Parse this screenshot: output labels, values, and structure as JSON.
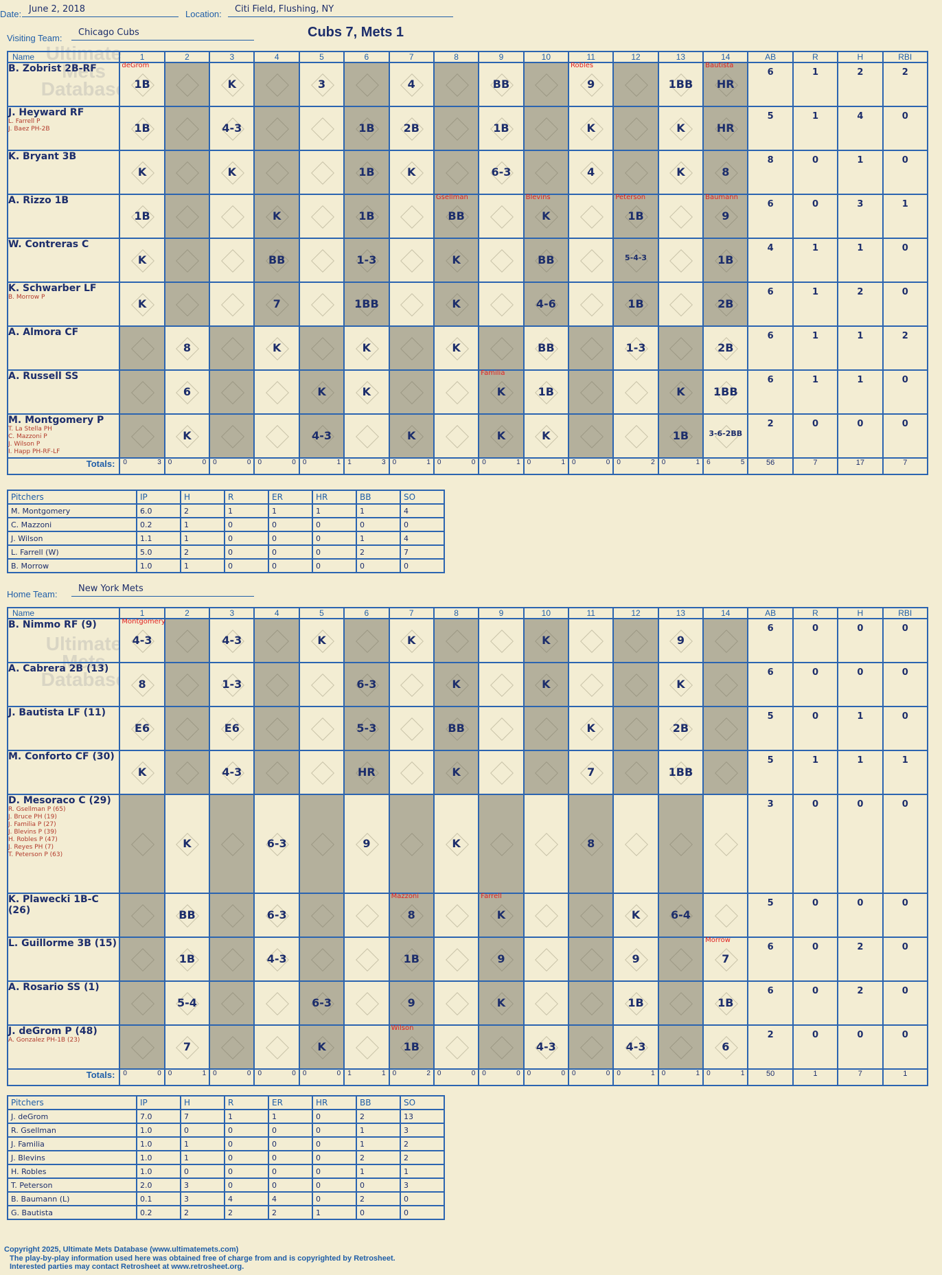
{
  "header": {
    "date_label": "Date:",
    "date": "June 2, 2018",
    "location_label": "Location:",
    "location": "Citi Field, Flushing, NY",
    "title": "Cubs 7, Mets 1"
  },
  "visiting": {
    "team_label": "Visiting Team:",
    "team": "Chicago Cubs",
    "cols": [
      "Name",
      "1",
      "2",
      "3",
      "4",
      "5",
      "6",
      "7",
      "8",
      "9",
      "10",
      "11",
      "12",
      "13",
      "14",
      "AB",
      "R",
      "H",
      "RBI"
    ],
    "players": [
      {
        "name": "B. Zobrist 2B-RF",
        "subs": [],
        "ab": "6",
        "r": "1",
        "h": "2",
        "rbi": "2"
      },
      {
        "name": "J. Heyward RF",
        "subs": [
          "L. Farrell P",
          "J. Baez PH-2B"
        ],
        "ab": "5",
        "r": "1",
        "h": "4",
        "rbi": "0"
      },
      {
        "name": "K. Bryant 3B",
        "subs": [],
        "ab": "8",
        "r": "0",
        "h": "1",
        "rbi": "0"
      },
      {
        "name": "A. Rizzo 1B",
        "subs": [],
        "ab": "6",
        "r": "0",
        "h": "3",
        "rbi": "1"
      },
      {
        "name": "W. Contreras C",
        "subs": [],
        "ab": "4",
        "r": "1",
        "h": "1",
        "rbi": "0"
      },
      {
        "name": "K. Schwarber LF",
        "subs": [
          "B. Morrow P"
        ],
        "ab": "6",
        "r": "1",
        "h": "2",
        "rbi": "0"
      },
      {
        "name": "A. Almora CF",
        "subs": [],
        "ab": "6",
        "r": "1",
        "h": "1",
        "rbi": "2"
      },
      {
        "name": "A. Russell SS",
        "subs": [],
        "ab": "6",
        "r": "1",
        "h": "1",
        "rbi": "0"
      },
      {
        "name": "M. Montgomery P",
        "subs": [
          "T. La Stella PH",
          "C. Mazzoni P",
          "J. Wilson P",
          "I. Happ PH-RF-LF"
        ],
        "ab": "2",
        "r": "0",
        "h": "0",
        "rbi": "0"
      }
    ],
    "results": [
      [
        "1B",
        "",
        "K",
        "",
        "3",
        "",
        "4",
        "",
        "BB",
        "",
        "9",
        "",
        "1BB",
        "HR"
      ],
      [
        "1B",
        "",
        "4-3",
        "",
        "",
        "1B",
        "2B",
        "",
        "1B",
        "",
        "K",
        "",
        "K",
        "HR"
      ],
      [
        "K",
        "",
        "K",
        "",
        "",
        "1B",
        "K",
        "",
        "6-3",
        "",
        "4",
        "",
        "K",
        "8"
      ],
      [
        "1B",
        "",
        "",
        "K",
        "",
        "1B",
        "",
        "BB",
        "",
        "K",
        "",
        "1B",
        "",
        "9"
      ],
      [
        "K",
        "",
        "",
        "BB",
        "",
        "1-3",
        "",
        "K",
        "",
        "BB",
        "",
        "5-4-3",
        "",
        "1B"
      ],
      [
        "K",
        "",
        "",
        "7",
        "",
        "1BB",
        "",
        "K",
        "",
        "4-6",
        "",
        "1B",
        "",
        "2B"
      ],
      [
        "",
        "8",
        "",
        "K",
        "",
        "K",
        "",
        "K",
        "",
        "BB",
        "",
        "1-3",
        "",
        "2B"
      ],
      [
        "",
        "6",
        "",
        "",
        "K",
        "K",
        "",
        "",
        "K",
        "1B",
        "",
        "",
        "K",
        "1BB"
      ],
      [
        "",
        "K",
        "",
        "",
        "4-3",
        "",
        "K",
        "",
        "K",
        "K",
        "",
        "",
        "1B",
        "3-6-2BB"
      ]
    ],
    "pitcher_marks": {
      "0-0": "deGrom",
      "0-10": "Robles",
      "0-13": "Bautista",
      "3-7": "Gsellman",
      "3-9": "Blevins",
      "3-11": "Peterson",
      "3-13": "Baumann",
      "7-8": "Familia"
    },
    "totals_label": "Totals:",
    "totals": [
      "0 3",
      "0 0",
      "0 0",
      "0 0",
      "0 1",
      "1 3",
      "0 1",
      "0 0",
      "0 1",
      "0 1",
      "0 0",
      "0 2",
      "0 1",
      "6 5"
    ],
    "totals_stats": [
      "56",
      "7",
      "17",
      "7"
    ],
    "rh": [
      "R",
      "H"
    ],
    "pitch_cols": [
      "Pitchers",
      "IP",
      "H",
      "R",
      "ER",
      "HR",
      "BB",
      "SO"
    ],
    "pitchers": [
      [
        "M. Montgomery",
        "6.0",
        "2",
        "1",
        "1",
        "1",
        "1",
        "4"
      ],
      [
        "C. Mazzoni",
        "0.2",
        "1",
        "0",
        "0",
        "0",
        "0",
        "0"
      ],
      [
        "J. Wilson",
        "1.1",
        "1",
        "0",
        "0",
        "0",
        "1",
        "4"
      ],
      [
        "L. Farrell (W)",
        "5.0",
        "2",
        "0",
        "0",
        "0",
        "2",
        "7"
      ],
      [
        "B. Morrow",
        "1.0",
        "1",
        "0",
        "0",
        "0",
        "0",
        "0"
      ]
    ]
  },
  "home": {
    "team_label": "Home Team:",
    "team": "New York Mets",
    "players": [
      {
        "name": "B. Nimmo RF (9)",
        "subs": [],
        "ab": "6",
        "r": "0",
        "h": "0",
        "rbi": "0"
      },
      {
        "name": "A. Cabrera 2B (13)",
        "subs": [],
        "ab": "6",
        "r": "0",
        "h": "0",
        "rbi": "0"
      },
      {
        "name": "J. Bautista LF (11)",
        "subs": [],
        "ab": "5",
        "r": "0",
        "h": "1",
        "rbi": "0"
      },
      {
        "name": "M. Conforto CF (30)",
        "subs": [],
        "ab": "5",
        "r": "1",
        "h": "1",
        "rbi": "1"
      },
      {
        "name": "D. Mesoraco C (29)",
        "subs": [
          "R. Gsellman P (65)",
          "J. Bruce PH (19)",
          "J. Familia P (27)",
          "J. Blevins P (39)",
          "H. Robles P (47)",
          "J. Reyes PH (7)",
          "T. Peterson P (63)"
        ],
        "ab": "3",
        "r": "0",
        "h": "0",
        "rbi": "0"
      },
      {
        "name": "K. Plawecki 1B-C (26)",
        "subs": [],
        "ab": "5",
        "r": "0",
        "h": "0",
        "rbi": "0"
      },
      {
        "name": "L. Guillorme 3B (15)",
        "subs": [],
        "ab": "6",
        "r": "0",
        "h": "2",
        "rbi": "0"
      },
      {
        "name": "A. Rosario SS (1)",
        "subs": [],
        "ab": "6",
        "r": "0",
        "h": "2",
        "rbi": "0"
      },
      {
        "name": "J. deGrom P (48)",
        "subs": [
          "A. Gonzalez PH-1B (23)"
        ],
        "ab": "2",
        "r": "0",
        "h": "0",
        "rbi": "0"
      }
    ],
    "results": [
      [
        "4-3",
        "",
        "4-3",
        "",
        "K",
        "",
        "K",
        "",
        "",
        "K",
        "",
        "",
        "9",
        ""
      ],
      [
        "8",
        "",
        "1-3",
        "",
        "",
        "6-3",
        "",
        "K",
        "",
        "K",
        "",
        "",
        "K",
        ""
      ],
      [
        "E6",
        "",
        "E6",
        "",
        "",
        "5-3",
        "",
        "BB",
        "",
        "",
        "K",
        "",
        "2B",
        ""
      ],
      [
        "K",
        "",
        "4-3",
        "",
        "",
        "HR",
        "",
        "K",
        "",
        "",
        "7",
        "",
        "1BB",
        ""
      ],
      [
        "",
        "K",
        "",
        "6-3",
        "",
        "9",
        "",
        "K",
        "",
        "",
        "8",
        "",
        "",
        ""
      ],
      [
        "",
        "BB",
        "",
        "6-3",
        "",
        "",
        "8",
        "",
        "K",
        "",
        "",
        "K",
        "6-4",
        ""
      ],
      [
        "",
        "1B",
        "",
        "4-3",
        "",
        "",
        "1B",
        "",
        "9",
        "",
        "",
        "9",
        "",
        "7"
      ],
      [
        "",
        "5-4",
        "",
        "",
        "6-3",
        "",
        "9",
        "",
        "K",
        "",
        "",
        "1B",
        "",
        "1B"
      ],
      [
        "",
        "7",
        "",
        "",
        "K",
        "",
        "1B",
        "",
        "",
        "4-3",
        "",
        "4-3",
        "",
        "6"
      ]
    ],
    "pitcher_marks": {
      "0-0": "Montgomery",
      "5-6": "Mazzoni",
      "5-8": "Farrell",
      "6-13": "Morrow",
      "8-6": "Wilson"
    },
    "totals": [
      "0 0",
      "0 1",
      "0 0",
      "0 0",
      "0 0",
      "1 1",
      "0 2",
      "0 0",
      "0 0",
      "0 0",
      "0 0",
      "0 1",
      "0 1",
      "0 1"
    ],
    "totals_stats": [
      "50",
      "1",
      "7",
      "1"
    ],
    "pitchers": [
      [
        "J. deGrom",
        "7.0",
        "7",
        "1",
        "1",
        "0",
        "2",
        "13"
      ],
      [
        "R. Gsellman",
        "1.0",
        "0",
        "0",
        "0",
        "0",
        "1",
        "3"
      ],
      [
        "J. Familia",
        "1.0",
        "1",
        "0",
        "0",
        "0",
        "1",
        "2"
      ],
      [
        "J. Blevins",
        "1.0",
        "1",
        "0",
        "0",
        "0",
        "2",
        "2"
      ],
      [
        "H. Robles",
        "1.0",
        "0",
        "0",
        "0",
        "0",
        "1",
        "1"
      ],
      [
        "T. Peterson",
        "2.0",
        "3",
        "0",
        "0",
        "0",
        "0",
        "3"
      ],
      [
        "B. Baumann (L)",
        "0.1",
        "3",
        "4",
        "4",
        "0",
        "2",
        "0"
      ],
      [
        "G. Bautista",
        "0.2",
        "2",
        "2",
        "2",
        "1",
        "0",
        "0"
      ]
    ]
  },
  "footer": {
    "line1": "Copyright 2025, Ultimate Mets Database (www.ultimatemets.com)",
    "line2": "The play-by-play information used here was obtained free of charge from and is copyrighted by Retrosheet.",
    "line3": "Interested parties may contact Retrosheet at www.retrosheet.org."
  }
}
